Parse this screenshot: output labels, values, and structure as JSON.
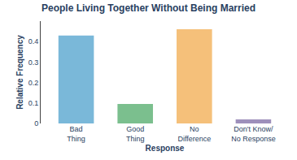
{
  "chart_data": {
    "type": "bar",
    "title": "People Living Together Without Being Married",
    "categories": [
      "Bad\nThing",
      "Good\nThing",
      "No\nDifference",
      "Don't Know/\nNo Response"
    ],
    "values": [
      0.43,
      0.095,
      0.46,
      0.02
    ],
    "colors": [
      "#7ab8d9",
      "#7bbf8e",
      "#f5c07a",
      "#9e90bb"
    ],
    "xlabel": "Response",
    "ylabel": "Relative Frequency",
    "ylim": [
      0,
      0.5
    ],
    "yticks": [
      0,
      0.1,
      0.2,
      0.3,
      0.4
    ],
    "grid": false
  }
}
